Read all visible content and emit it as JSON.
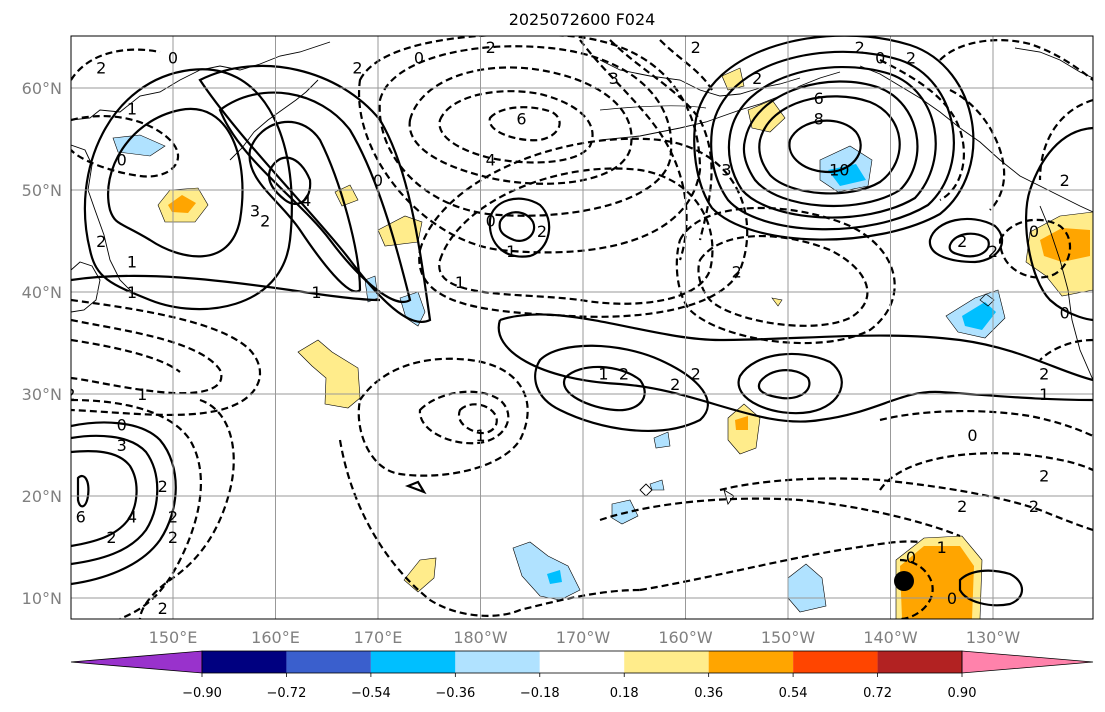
{
  "title": "2025072600 F024",
  "lat_labels": [
    "60°N",
    "50°N",
    "40°N",
    "30°N",
    "20°N",
    "10°N"
  ],
  "lon_labels": [
    "150°E",
    "160°E",
    "170°E",
    "180°W",
    "170°W",
    "160°W",
    "150°W",
    "140°W",
    "130°W"
  ],
  "colorbar": {
    "ticks": [
      "−0.90",
      "−0.72",
      "−0.54",
      "−0.36",
      "−0.18",
      "0.18",
      "0.36",
      "0.54",
      "0.72",
      "0.90"
    ],
    "colors": [
      "#9932cc",
      "#000080",
      "#3a5fcd",
      "#00bfff",
      "#b0e2ff",
      "#ffffff",
      "#ffec8b",
      "#ffa500",
      "#ff4500",
      "#b22222",
      "#ff82ab"
    ]
  },
  "contour_labels": [
    {
      "text": "2",
      "lon": 143,
      "lat": 62
    },
    {
      "text": "0",
      "lon": 150,
      "lat": 63
    },
    {
      "text": "1",
      "lon": 146,
      "lat": 58
    },
    {
      "text": "0",
      "lon": 145,
      "lat": 53
    },
    {
      "text": "2",
      "lon": 143,
      "lat": 45
    },
    {
      "text": "1",
      "lon": 146,
      "lat": 43
    },
    {
      "text": "1",
      "lon": 146,
      "lat": 40
    },
    {
      "text": "4",
      "lon": 163,
      "lat": 49
    },
    {
      "text": "3",
      "lon": 158,
      "lat": 48
    },
    {
      "text": "2",
      "lon": 159,
      "lat": 47
    },
    {
      "text": "1",
      "lon": 164,
      "lat": 40
    },
    {
      "text": "0",
      "lon": 170,
      "lat": 51
    },
    {
      "text": "2",
      "lon": 168,
      "lat": 62
    },
    {
      "text": "0",
      "lon": 174,
      "lat": 63
    },
    {
      "text": "2",
      "lon": 181,
      "lat": 64
    },
    {
      "text": "6",
      "lon": 184,
      "lat": 57
    },
    {
      "text": "4",
      "lon": 181,
      "lat": 53
    },
    {
      "text": "3",
      "lon": 193,
      "lat": 61
    },
    {
      "text": "2",
      "lon": 186,
      "lat": 46
    },
    {
      "text": "0",
      "lon": 181,
      "lat": 47
    },
    {
      "text": "1",
      "lon": 183,
      "lat": 44
    },
    {
      "text": "1",
      "lon": 178,
      "lat": 41
    },
    {
      "text": "2",
      "lon": 201,
      "lat": 64
    },
    {
      "text": "6",
      "lon": 213,
      "lat": 59
    },
    {
      "text": "8",
      "lon": 213,
      "lat": 57
    },
    {
      "text": "10",
      "lon": 215,
      "lat": 52
    },
    {
      "text": "2",
      "lon": 207,
      "lat": 61
    },
    {
      "text": "3",
      "lon": 204,
      "lat": 52
    },
    {
      "text": "2",
      "lon": 205,
      "lat": 42
    },
    {
      "text": "2",
      "lon": 217,
      "lat": 64
    },
    {
      "text": "0",
      "lon": 219,
      "lat": 63
    },
    {
      "text": "2",
      "lon": 222,
      "lat": 63
    },
    {
      "text": "2",
      "lon": 227,
      "lat": 45
    },
    {
      "text": "2",
      "lon": 230,
      "lat": 44
    },
    {
      "text": "0",
      "lon": 237,
      "lat": 38
    },
    {
      "text": "2",
      "lon": 235,
      "lat": 32
    },
    {
      "text": "1",
      "lon": 235,
      "lat": 30
    },
    {
      "text": "0",
      "lon": 234,
      "lat": 46
    },
    {
      "text": "2",
      "lon": 237,
      "lat": 51
    },
    {
      "text": "2",
      "lon": 140,
      "lat": 30
    },
    {
      "text": "1",
      "lon": 147,
      "lat": 30
    },
    {
      "text": "0",
      "lon": 145,
      "lat": 27
    },
    {
      "text": "3",
      "lon": 145,
      "lat": 25
    },
    {
      "text": "2",
      "lon": 149,
      "lat": 21
    },
    {
      "text": "4",
      "lon": 146,
      "lat": 18
    },
    {
      "text": "2",
      "lon": 144,
      "lat": 16
    },
    {
      "text": "2",
      "lon": 150,
      "lat": 18
    },
    {
      "text": "2",
      "lon": 150,
      "lat": 16
    },
    {
      "text": "6",
      "lon": 141,
      "lat": 18
    },
    {
      "text": "2",
      "lon": 149,
      "lat": 9
    },
    {
      "text": "1",
      "lon": 192,
      "lat": 32
    },
    {
      "text": "2",
      "lon": 194,
      "lat": 32
    },
    {
      "text": "2",
      "lon": 199,
      "lat": 31
    },
    {
      "text": "2",
      "lon": 201,
      "lat": 32
    },
    {
      "text": "1",
      "lon": 180,
      "lat": 26
    },
    {
      "text": "0",
      "lon": 228,
      "lat": 26
    },
    {
      "text": "2",
      "lon": 227,
      "lat": 19
    },
    {
      "text": "2",
      "lon": 234,
      "lat": 19
    },
    {
      "text": "2",
      "lon": 235,
      "lat": 22
    },
    {
      "text": "0",
      "lon": 222,
      "lat": 14
    },
    {
      "text": "1",
      "lon": 225,
      "lat": 15
    },
    {
      "text": "0",
      "lon": 226,
      "lat": 10
    }
  ]
}
